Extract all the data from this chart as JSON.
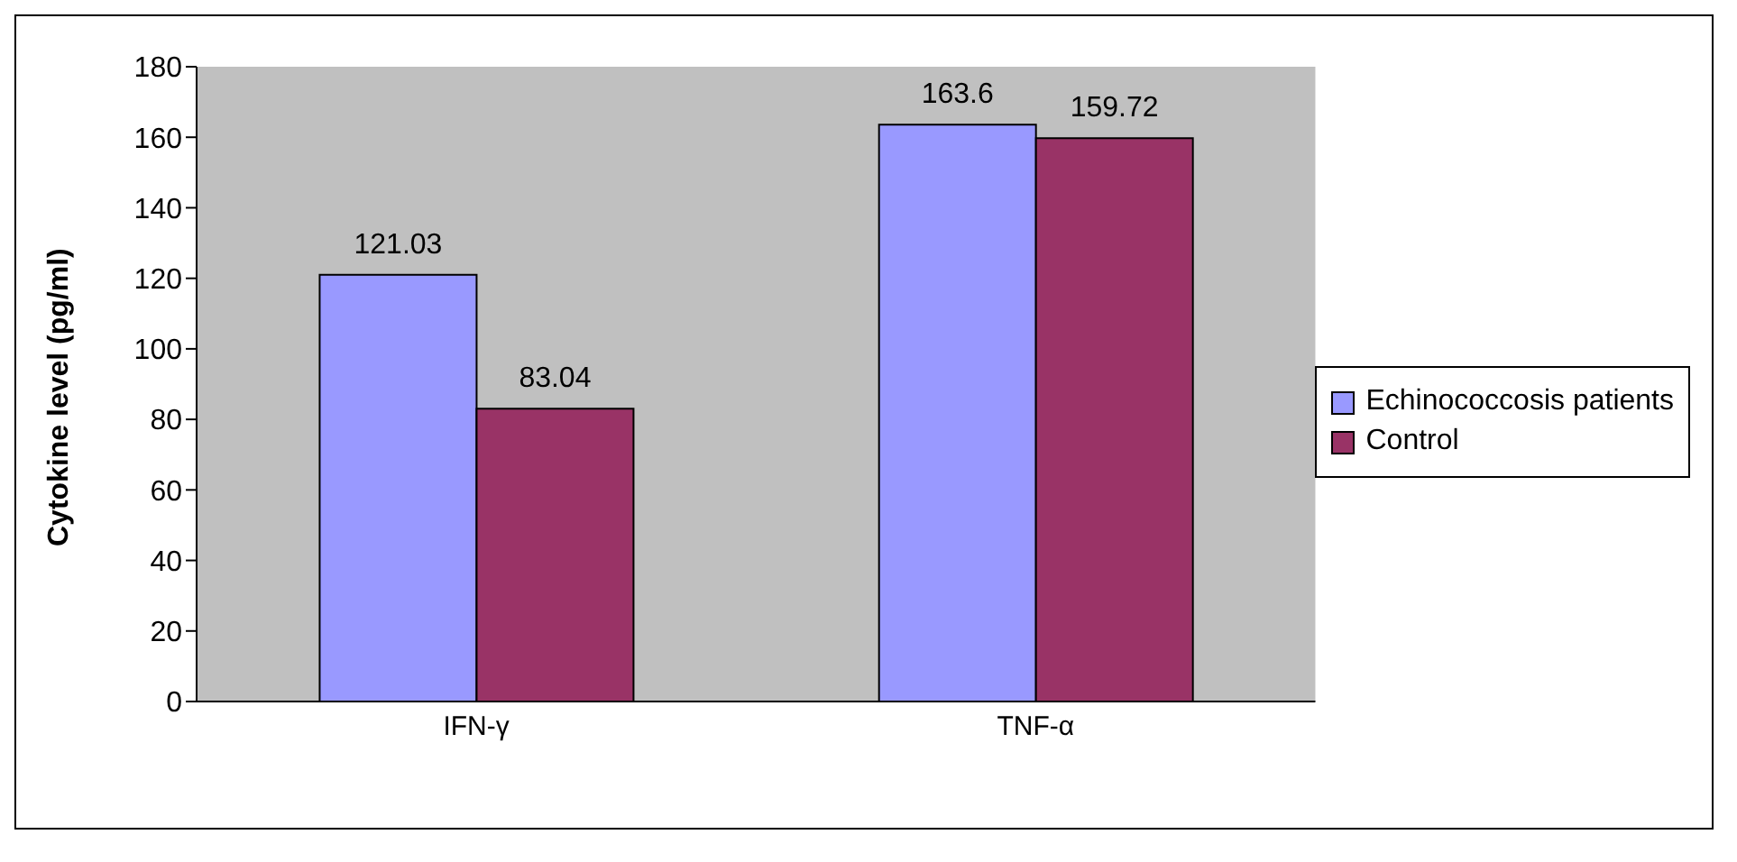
{
  "chart_data": {
    "type": "bar",
    "ylabel": "Cytokine level (pg/ml)",
    "categories": [
      "IFN-γ",
      "TNF-α"
    ],
    "series": [
      {
        "name": "Echinococcosis patients",
        "color": "#9999ff",
        "values": [
          121.03,
          163.6
        ]
      },
      {
        "name": "Control",
        "color": "#993366",
        "values": [
          83.04,
          159.72
        ]
      }
    ],
    "ylim": [
      0,
      180
    ],
    "yticks": [
      0,
      20,
      40,
      60,
      80,
      100,
      120,
      140,
      160,
      180
    ],
    "grid": false,
    "legend": "right",
    "data_labels": true
  }
}
